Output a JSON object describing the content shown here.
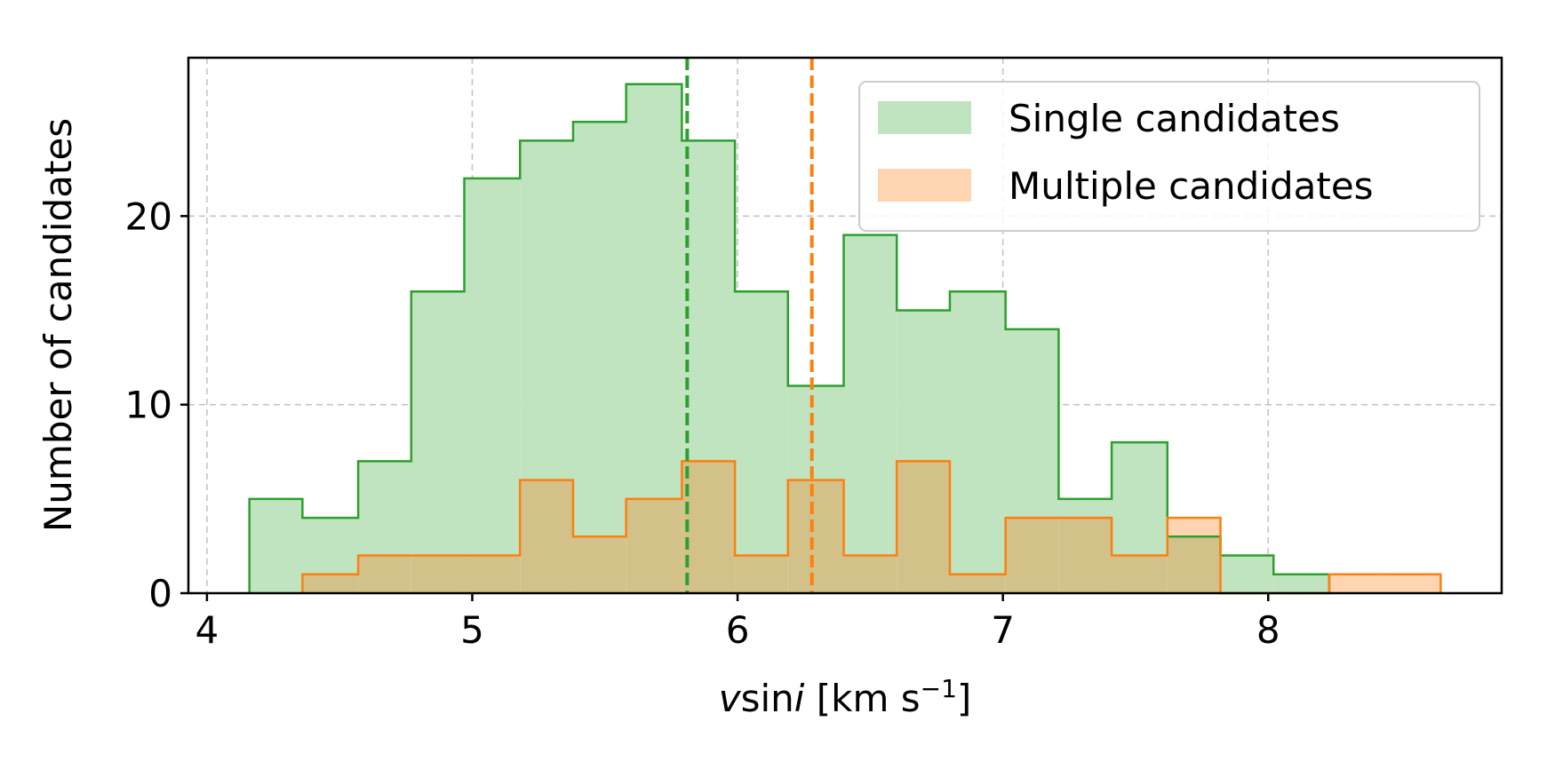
{
  "chart_data": {
    "type": "bar",
    "xlabel": {
      "v": "v",
      "sin": "sin",
      "i": "i",
      "unit_open": " [km s",
      "exp": "−1",
      "unit_close": "]"
    },
    "ylabel": "Number of candidates",
    "xlim": [
      3.93,
      8.88
    ],
    "ylim": [
      0,
      28.4
    ],
    "xticks": [
      4,
      5,
      6,
      7,
      8
    ],
    "yticks": [
      0,
      10,
      20
    ],
    "grid": true,
    "legend": {
      "position": "top-right",
      "entries": [
        "Single candidates",
        "Multiple candidates"
      ]
    },
    "bin_edges": [
      4.16,
      4.36,
      4.57,
      4.77,
      4.97,
      5.18,
      5.38,
      5.58,
      5.79,
      5.99,
      6.19,
      6.4,
      6.6,
      6.8,
      7.01,
      7.21,
      7.41,
      7.62,
      7.82,
      8.02,
      8.23,
      8.43,
      8.65
    ],
    "series": [
      {
        "name": "Single candidates",
        "color": "#2ca02c",
        "fill": "#c0e3c0",
        "values": [
          5,
          4,
          7,
          16,
          22,
          24,
          25,
          27,
          24,
          16,
          11,
          19,
          15,
          16,
          14,
          5,
          8,
          3,
          2,
          1,
          0,
          0
        ],
        "median": 5.81
      },
      {
        "name": "Multiple candidates",
        "color": "#ff7f0e",
        "fill": "#ffd4b0",
        "values": [
          0,
          1,
          2,
          2,
          2,
          6,
          3,
          5,
          7,
          2,
          6,
          2,
          7,
          1,
          4,
          4,
          2,
          4,
          0,
          0,
          1,
          1
        ],
        "median": 6.28
      }
    ],
    "overlap_fill": "#d2c28a"
  }
}
